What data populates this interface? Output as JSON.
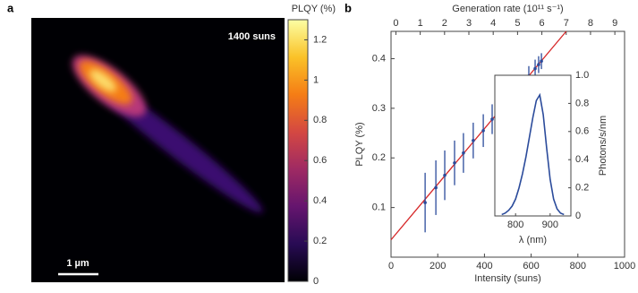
{
  "chart_data": [
    {
      "type": "heatmap",
      "panel_label": "a",
      "annotation": "1400 suns",
      "scale_bar_label": "1 µm",
      "colorbar_label": "PLQY (%)",
      "clim": [
        0,
        1.3
      ],
      "cticks": [
        0,
        0.2,
        0.4,
        0.6,
        0.8,
        1,
        1.2
      ],
      "colormap": [
        "#000004",
        "#280b54",
        "#65156e",
        "#9f2a63",
        "#d44842",
        "#f57d15",
        "#fac228",
        "#fcffa4"
      ]
    },
    {
      "type": "scatter",
      "panel_label": "b",
      "xlabel": "Intensity (suns)",
      "ylabel": "PLQY (%)",
      "x2label": "Generation rate (10¹¹ s⁻¹)",
      "xlim": [
        0,
        1000
      ],
      "xticks": [
        0,
        200,
        400,
        600,
        800,
        1000
      ],
      "x2lim": [
        -0.2,
        9.4
      ],
      "x2ticks": [
        0,
        1,
        2,
        3,
        4,
        5,
        6,
        7,
        8,
        9
      ],
      "ylim": [
        0,
        0.455
      ],
      "yticks": [
        0.1,
        0.2,
        0.3,
        0.4
      ],
      "points": {
        "color": "#2b4b9b",
        "x": [
          146,
          192,
          230,
          272,
          310,
          352,
          395,
          433,
          475,
          513,
          552,
          590,
          617,
          632,
          644
        ],
        "y": [
          0.11,
          0.14,
          0.165,
          0.19,
          0.21,
          0.235,
          0.255,
          0.278,
          0.3,
          0.322,
          0.344,
          0.365,
          0.38,
          0.388,
          0.395
        ],
        "errors": [
          0.06,
          0.055,
          0.05,
          0.045,
          0.04,
          0.036,
          0.033,
          0.03,
          0.027,
          0.025,
          0.022,
          0.02,
          0.018,
          0.017,
          0.016
        ]
      },
      "fit": {
        "color": "#d62728",
        "x": [
          0,
          750
        ],
        "y": [
          0.035,
          0.455
        ]
      }
    },
    {
      "type": "line",
      "xlabel": "λ (nm)",
      "ylabel": "Photons/s/nm",
      "color": "#2b4b9b",
      "x": [
        760,
        770,
        780,
        790,
        800,
        810,
        820,
        830,
        840,
        850,
        860,
        870,
        880,
        890,
        900,
        910,
        920,
        930,
        940
      ],
      "values": [
        0.01,
        0.02,
        0.04,
        0.07,
        0.12,
        0.2,
        0.3,
        0.42,
        0.56,
        0.7,
        0.82,
        0.86,
        0.72,
        0.48,
        0.26,
        0.12,
        0.05,
        0.02,
        0.01
      ],
      "xlim": [
        740,
        960
      ],
      "xticks": [
        800,
        900
      ],
      "ylim": [
        0,
        1
      ],
      "yticks": [
        0,
        0.2,
        0.4,
        0.6,
        0.8,
        {
          "value": 1,
          "label": "1.0"
        }
      ]
    }
  ]
}
